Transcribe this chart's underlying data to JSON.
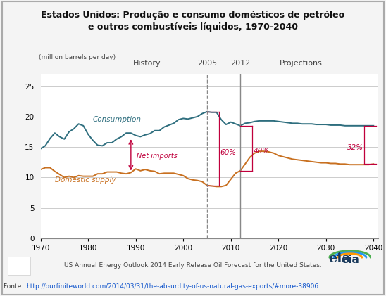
{
  "title_line1": "Estados Unidos: Produção e consumo domésticos de petróleo",
  "title_line2": "e outros combustíveis líquidos, 1970-2040",
  "ylabel": "(million barrels per day)",
  "xlabel_note": "US Annual Energy Outlook 2014 Early Release Oil Forecast for the United States.",
  "fonte_label": "Fonte: ",
  "fonte_url": "http://ourfiniteworld.com/2014/03/31/the-absurdity-of-us-natural-gas-exports/#more-38906",
  "history_label": "History",
  "projections_label": "Projections",
  "year_2005_label": "2005",
  "year_2012_label": "2012",
  "consumption_label": "Consumption",
  "domestic_supply_label": "Domestic supply",
  "net_imports_label": "Net imports",
  "pct_60_label": "60%",
  "pct_40_label": "40%",
  "pct_32_label": "32%",
  "consumption_color": "#2e6e7e",
  "domestic_color": "#c87020",
  "annotation_color": "#c0003c",
  "vline_2005_color": "#888888",
  "vline_2012_color": "#888888",
  "grid_color": "#cccccc",
  "background_plot": "#ffffff",
  "background_fig": "#f4f4f4",
  "border_color": "#aaaaaa",
  "ylim": [
    0,
    27
  ],
  "yticks": [
    0,
    5,
    10,
    15,
    20,
    25
  ],
  "xlim": [
    1970,
    2041
  ],
  "xticks": [
    1970,
    1980,
    1990,
    2000,
    2010,
    2020,
    2030,
    2040
  ],
  "consumption_years": [
    1970,
    1971,
    1972,
    1973,
    1974,
    1975,
    1976,
    1977,
    1978,
    1979,
    1980,
    1981,
    1982,
    1983,
    1984,
    1985,
    1986,
    1987,
    1988,
    1989,
    1990,
    1991,
    1992,
    1993,
    1994,
    1995,
    1996,
    1997,
    1998,
    1999,
    2000,
    2001,
    2002,
    2003,
    2004,
    2005,
    2006,
    2007,
    2008,
    2009,
    2010,
    2011,
    2012,
    2013,
    2014,
    2015,
    2016,
    2017,
    2018,
    2019,
    2020,
    2021,
    2022,
    2023,
    2024,
    2025,
    2026,
    2027,
    2028,
    2029,
    2030,
    2031,
    2032,
    2033,
    2034,
    2035,
    2036,
    2037,
    2038,
    2039,
    2040
  ],
  "consumption_values": [
    14.7,
    15.2,
    16.4,
    17.3,
    16.7,
    16.3,
    17.5,
    18.0,
    18.8,
    18.5,
    17.1,
    16.1,
    15.3,
    15.2,
    15.7,
    15.7,
    16.3,
    16.7,
    17.3,
    17.3,
    16.9,
    16.7,
    17.0,
    17.2,
    17.7,
    17.7,
    18.3,
    18.6,
    18.9,
    19.5,
    19.7,
    19.6,
    19.8,
    20.0,
    20.5,
    20.8,
    20.7,
    20.7,
    19.5,
    18.7,
    19.1,
    18.8,
    18.5,
    18.9,
    19.0,
    19.2,
    19.3,
    19.3,
    19.3,
    19.3,
    19.2,
    19.1,
    19.0,
    18.9,
    18.9,
    18.8,
    18.8,
    18.8,
    18.7,
    18.7,
    18.7,
    18.6,
    18.6,
    18.6,
    18.5,
    18.5,
    18.5,
    18.5,
    18.5,
    18.5,
    18.5
  ],
  "domestic_years": [
    1970,
    1971,
    1972,
    1973,
    1974,
    1975,
    1976,
    1977,
    1978,
    1979,
    1980,
    1981,
    1982,
    1983,
    1984,
    1985,
    1986,
    1987,
    1988,
    1989,
    1990,
    1991,
    1992,
    1993,
    1994,
    1995,
    1996,
    1997,
    1998,
    1999,
    2000,
    2001,
    2002,
    2003,
    2004,
    2005,
    2006,
    2007,
    2008,
    2009,
    2010,
    2011,
    2012,
    2013,
    2014,
    2015,
    2016,
    2017,
    2018,
    2019,
    2020,
    2021,
    2022,
    2023,
    2024,
    2025,
    2026,
    2027,
    2028,
    2029,
    2030,
    2031,
    2032,
    2033,
    2034,
    2035,
    2036,
    2037,
    2038,
    2039,
    2040
  ],
  "domestic_values": [
    11.3,
    11.6,
    11.6,
    11.0,
    10.5,
    10.0,
    10.2,
    10.0,
    10.3,
    10.2,
    10.2,
    10.2,
    10.6,
    10.6,
    10.9,
    10.9,
    10.9,
    10.7,
    10.6,
    10.8,
    11.4,
    11.1,
    11.3,
    11.1,
    11.0,
    10.6,
    10.7,
    10.7,
    10.7,
    10.5,
    10.3,
    9.8,
    9.6,
    9.5,
    9.3,
    8.7,
    8.6,
    8.5,
    8.5,
    8.7,
    9.7,
    10.7,
    11.1,
    12.2,
    13.3,
    14.0,
    14.3,
    14.3,
    14.2,
    14.0,
    13.6,
    13.4,
    13.2,
    13.0,
    12.9,
    12.8,
    12.7,
    12.6,
    12.5,
    12.4,
    12.4,
    12.3,
    12.3,
    12.2,
    12.2,
    12.1,
    12.1,
    12.1,
    12.1,
    12.1,
    12.2
  ]
}
